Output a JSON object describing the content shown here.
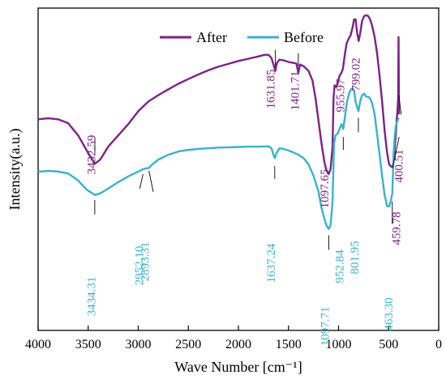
{
  "chart_data": {
    "type": "line",
    "title": "",
    "xlabel": "Wave Number [cm⁻¹]",
    "ylabel": "Intensity(a.u.)",
    "xlim": [
      4000,
      0
    ],
    "ylim": [
      0,
      100
    ],
    "x_ticks": [
      4000,
      3500,
      3000,
      2500,
      2000,
      1500,
      1000,
      500,
      0
    ],
    "x_tick_labels": [
      "4000",
      "3500",
      "3000",
      "2500",
      "2000",
      "1500",
      "1000",
      "500",
      "0"
    ],
    "grid": false,
    "legend_position": "top-center",
    "series": [
      {
        "name": "After",
        "color": "#7b2383",
        "points": [
          [
            4000,
            65.5
          ],
          [
            3900,
            65.8
          ],
          [
            3800,
            65.5
          ],
          [
            3700,
            64.3
          ],
          [
            3600,
            60.5
          ],
          [
            3500,
            55.0
          ],
          [
            3432.59,
            51.7
          ],
          [
            3380,
            53.0
          ],
          [
            3300,
            57.0
          ],
          [
            3200,
            60.5
          ],
          [
            3100,
            64.0
          ],
          [
            3000,
            68.0
          ],
          [
            2900,
            71.0
          ],
          [
            2800,
            73.0
          ],
          [
            2700,
            74.8
          ],
          [
            2600,
            76.5
          ],
          [
            2500,
            78.0
          ],
          [
            2400,
            79.4
          ],
          [
            2300,
            80.7
          ],
          [
            2200,
            81.8
          ],
          [
            2100,
            82.7
          ],
          [
            2000,
            83.6
          ],
          [
            1900,
            84.3
          ],
          [
            1800,
            85.0
          ],
          [
            1740,
            85.5
          ],
          [
            1700,
            85.5
          ],
          [
            1670,
            84.5
          ],
          [
            1645,
            82.0
          ],
          [
            1631.85,
            80.5
          ],
          [
            1615,
            83.0
          ],
          [
            1590,
            84.0
          ],
          [
            1550,
            83.8
          ],
          [
            1500,
            83.3
          ],
          [
            1450,
            83.0
          ],
          [
            1420,
            82.8
          ],
          [
            1401.71,
            79.8
          ],
          [
            1385,
            82.5
          ],
          [
            1350,
            82.0
          ],
          [
            1300,
            80.5
          ],
          [
            1260,
            77.5
          ],
          [
            1230,
            72.0
          ],
          [
            1200,
            65.0
          ],
          [
            1170,
            58.0
          ],
          [
            1140,
            52.0
          ],
          [
            1120,
            49.5
          ],
          [
            1097.65,
            48.5
          ],
          [
            1080,
            50.0
          ],
          [
            1060,
            57.0
          ],
          [
            1050,
            72.0
          ],
          [
            1040,
            76.0
          ],
          [
            1030,
            75.5
          ],
          [
            1010,
            76.5
          ],
          [
            990,
            79.0
          ],
          [
            970,
            80.0
          ],
          [
            955.97,
            81.2
          ],
          [
            940,
            85.0
          ],
          [
            920,
            89.0
          ],
          [
            900,
            90.5
          ],
          [
            880,
            91.5
          ],
          [
            860,
            94.0
          ],
          [
            845,
            96.5
          ],
          [
            830,
            96.5
          ],
          [
            815,
            92.5
          ],
          [
            799.02,
            89.8
          ],
          [
            785,
            92.0
          ],
          [
            765,
            96.0
          ],
          [
            745,
            97.5
          ],
          [
            725,
            97.8
          ],
          [
            705,
            97.6
          ],
          [
            685,
            96.5
          ],
          [
            665,
            94.5
          ],
          [
            640,
            91.0
          ],
          [
            615,
            86.0
          ],
          [
            590,
            79.0
          ],
          [
            565,
            71.0
          ],
          [
            540,
            62.0
          ],
          [
            515,
            55.0
          ],
          [
            495,
            51.5
          ],
          [
            480,
            51.0
          ],
          [
            459.78,
            50.5
          ],
          [
            445,
            54.0
          ],
          [
            430,
            60.0
          ],
          [
            420,
            65.0
          ],
          [
            412,
            68.0
          ],
          [
            405,
            72.0
          ],
          [
            400.51,
            91.0
          ],
          [
            397,
            67.0
          ]
        ]
      },
      {
        "name": "Before",
        "color": "#3ab2c9",
        "points": [
          [
            4000,
            49.2
          ],
          [
            3900,
            49.5
          ],
          [
            3800,
            49.3
          ],
          [
            3700,
            48.7
          ],
          [
            3600,
            46.5
          ],
          [
            3520,
            43.8
          ],
          [
            3434.31,
            42.0
          ],
          [
            3380,
            42.5
          ],
          [
            3300,
            44.0
          ],
          [
            3200,
            46.0
          ],
          [
            3100,
            47.8
          ],
          [
            3000,
            49.3
          ],
          [
            2952.1,
            50.0
          ],
          [
            2920,
            50.3
          ],
          [
            2893.31,
            50.4
          ],
          [
            2860,
            51.5
          ],
          [
            2800,
            53.0
          ],
          [
            2700,
            54.5
          ],
          [
            2600,
            55.5
          ],
          [
            2500,
            56.0
          ],
          [
            2400,
            56.3
          ],
          [
            2300,
            56.5
          ],
          [
            2200,
            56.7
          ],
          [
            2100,
            56.8
          ],
          [
            2000,
            56.9
          ],
          [
            1900,
            57.0
          ],
          [
            1800,
            57.0
          ],
          [
            1700,
            57.1
          ],
          [
            1670,
            56.5
          ],
          [
            1650,
            54.5
          ],
          [
            1637.24,
            53.5
          ],
          [
            1620,
            55.0
          ],
          [
            1590,
            56.5
          ],
          [
            1550,
            56.3
          ],
          [
            1500,
            55.8
          ],
          [
            1450,
            55.2
          ],
          [
            1400,
            54.5
          ],
          [
            1350,
            53.5
          ],
          [
            1300,
            51.5
          ],
          [
            1250,
            48.0
          ],
          [
            1200,
            43.0
          ],
          [
            1170,
            38.0
          ],
          [
            1140,
            34.5
          ],
          [
            1120,
            32.5
          ],
          [
            1097.71,
            31.5
          ],
          [
            1080,
            32.5
          ],
          [
            1060,
            40.0
          ],
          [
            1045,
            58.0
          ],
          [
            1030,
            60.5
          ],
          [
            1010,
            61.0
          ],
          [
            990,
            62.5
          ],
          [
            970,
            64.0
          ],
          [
            952.84,
            62.5
          ],
          [
            935,
            66.5
          ],
          [
            915,
            71.0
          ],
          [
            895,
            73.5
          ],
          [
            875,
            74.8
          ],
          [
            860,
            75.0
          ],
          [
            845,
            74.5
          ],
          [
            830,
            71.0
          ],
          [
            801.95,
            68.0
          ],
          [
            785,
            71.0
          ],
          [
            765,
            73.0
          ],
          [
            745,
            73.5
          ],
          [
            725,
            72.5
          ],
          [
            705,
            72.5
          ],
          [
            685,
            72.0
          ],
          [
            665,
            70.5
          ],
          [
            640,
            67.0
          ],
          [
            615,
            61.0
          ],
          [
            590,
            54.5
          ],
          [
            565,
            48.0
          ],
          [
            540,
            42.0
          ],
          [
            515,
            38.5
          ],
          [
            495,
            38.5
          ],
          [
            480,
            40.0
          ],
          [
            463.3,
            42.5
          ],
          [
            450,
            55.0
          ],
          [
            440,
            60.0
          ],
          [
            430,
            63.0
          ],
          [
            420,
            64.5
          ],
          [
            412,
            65.0
          ],
          [
            405,
            65.5
          ],
          [
            400,
            66.0
          ]
        ]
      }
    ],
    "annotations": [
      {
        "text": "3432.59",
        "series": "After",
        "x": 3432.59,
        "y": 51.7
      },
      {
        "text": "1631.85",
        "series": "After",
        "x": 1631.85,
        "y": 80.5
      },
      {
        "text": "1401.71",
        "series": "After",
        "x": 1401.71,
        "y": 79.8
      },
      {
        "text": "1097.65",
        "series": "After",
        "x": 1097.65,
        "y": 48.5
      },
      {
        "text": "955.97",
        "series": "After",
        "x": 955.97,
        "y": 81.2
      },
      {
        "text": "799.02",
        "series": "After",
        "x": 799.02,
        "y": 89.8
      },
      {
        "text": "400.51",
        "series": "After",
        "x": 400.51,
        "y": 66.0
      },
      {
        "text": "459.78",
        "series": "After",
        "x": 459.78,
        "y": 50.5
      },
      {
        "text": "3434.31",
        "series": "Before",
        "x": 3434.31,
        "y": 42.0
      },
      {
        "text": "2952.10",
        "series": "Before",
        "x": 2952.1,
        "y": 50.0
      },
      {
        "text": "2893.31",
        "series": "Before",
        "x": 2893.31,
        "y": 50.4
      },
      {
        "text": "1637.24",
        "series": "Before",
        "x": 1637.24,
        "y": 53.5
      },
      {
        "text": "1097.71",
        "series": "Before",
        "x": 1097.71,
        "y": 31.5
      },
      {
        "text": "952.84",
        "series": "Before",
        "x": 952.84,
        "y": 62.5
      },
      {
        "text": "801.95",
        "series": "Before",
        "x": 801.95,
        "y": 68.0
      },
      {
        "text": "463.30",
        "series": "Before",
        "x": 463.3,
        "y": 42.5
      }
    ]
  }
}
